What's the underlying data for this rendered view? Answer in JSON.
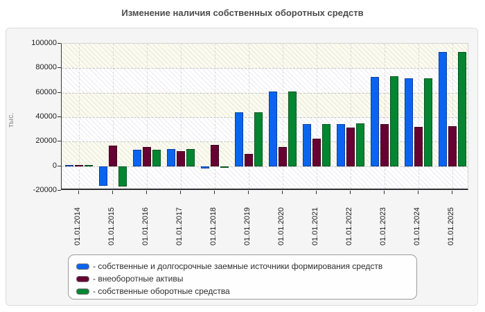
{
  "page": {
    "title": "Изменение наличия собственных оборотных средств"
  },
  "chart_data": {
    "type": "bar",
    "title": "Изменение наличия собственных оборотных средств",
    "xlabel": "",
    "ylabel": "тыс.",
    "ylim": [
      -20000,
      100000
    ],
    "y_tick_step": 20000,
    "y_tick_labels": [
      "100000",
      "80000",
      "60000",
      "40000",
      "20000",
      "0",
      "-20000"
    ],
    "grid": {
      "horizontal": "dashed",
      "vertical": "dashed",
      "hatch": "diagonal",
      "band_colors": [
        "#fbfbee",
        "#ffffff"
      ]
    },
    "legend_position": "bottom",
    "categories": [
      "01.01.2014",
      "01.01.2015",
      "01.01.2016",
      "01.01.2017",
      "01.01.2018",
      "01.01.2019",
      "01.01.2020",
      "01.01.2021",
      "01.01.2022",
      "01.01.2023",
      "01.01.2024",
      "01.01.2025"
    ],
    "series": [
      {
        "key": "sources",
        "name": "собственные и долгосрочные заемные источники формирования средств",
        "legend_label": "- собственные и долгосрочные заемные источники формирования средств",
        "color": "#0a64f0",
        "border_color": "#0b3fa0",
        "values": [
          900,
          -16300,
          13500,
          13700,
          -1900,
          43800,
          60700,
          34500,
          34500,
          73000,
          71700,
          93400
        ]
      },
      {
        "key": "noncurrent-assets",
        "name": "внеоборотные активы",
        "legend_label": "- внеоборотные активы",
        "color": "#660033",
        "border_color": "#40001f",
        "values": [
          900,
          16800,
          15600,
          12300,
          17200,
          10000,
          15500,
          22600,
          31500,
          34100,
          31800,
          32700
        ]
      },
      {
        "key": "own-working-capital",
        "name": "собственные оборотные средства",
        "legend_label": "- собственные оборотные средства",
        "color": "#048531",
        "border_color": "#03551f",
        "values": [
          900,
          -16600,
          13500,
          13700,
          -1600,
          43800,
          60700,
          34500,
          34700,
          73200,
          71800,
          93400
        ]
      }
    ]
  }
}
